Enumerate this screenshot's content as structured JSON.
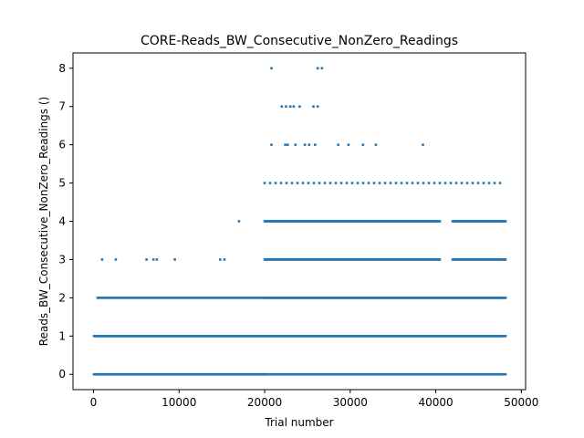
{
  "chart_data": {
    "type": "scatter",
    "title": "CORE-Reads_BW_Consecutive_NonZero_Readings",
    "xlabel": "Trial number",
    "ylabel": "Reads_BW_Consecutive_NonZero_Readings ()",
    "xlim": [
      -2400,
      50500
    ],
    "ylim": [
      -0.4,
      8.4
    ],
    "xticks": [
      0,
      10000,
      20000,
      30000,
      40000,
      50000
    ],
    "yticks": [
      0,
      1,
      2,
      3,
      4,
      5,
      6,
      7,
      8
    ],
    "marker_color": "#1f77b4",
    "grid": false,
    "series": [
      {
        "segments": [
          {
            "y": 0,
            "x": [
              0,
              20000
            ],
            "density": "dense"
          },
          {
            "y": 0,
            "x": [
              20000,
              48200
            ],
            "density": "medium"
          },
          {
            "y": 1,
            "x": [
              0,
              48200
            ],
            "density": "dense"
          },
          {
            "y": 2,
            "x": [
              500,
              20000
            ],
            "density": "medium"
          },
          {
            "y": 2,
            "x": [
              20000,
              48200
            ],
            "density": "dense"
          },
          {
            "y": 3,
            "x": [
              20000,
              40500
            ],
            "density": "dense"
          },
          {
            "y": 3,
            "x": [
              42000,
              48200
            ],
            "density": "dense"
          },
          {
            "y": 4,
            "x": [
              20000,
              40500
            ],
            "density": "dense"
          },
          {
            "y": 4,
            "x": [
              42000,
              48200
            ],
            "density": "dense"
          },
          {
            "y": 5,
            "x": [
              20000,
              48000
            ],
            "density": "sparse"
          }
        ],
        "points": [
          [
            1000,
            3
          ],
          [
            2600,
            3
          ],
          [
            6200,
            3
          ],
          [
            7000,
            3
          ],
          [
            7400,
            3
          ],
          [
            9500,
            3
          ],
          [
            14800,
            3
          ],
          [
            15300,
            3
          ],
          [
            17000,
            4
          ],
          [
            20800,
            8
          ],
          [
            26200,
            8
          ],
          [
            26700,
            8
          ],
          [
            22000,
            7
          ],
          [
            22500,
            7
          ],
          [
            23000,
            7
          ],
          [
            23400,
            7
          ],
          [
            24100,
            7
          ],
          [
            25700,
            7
          ],
          [
            26200,
            7
          ],
          [
            20800,
            6
          ],
          [
            22400,
            6
          ],
          [
            22700,
            6
          ],
          [
            23600,
            6
          ],
          [
            24700,
            6
          ],
          [
            25200,
            6
          ],
          [
            25900,
            6
          ],
          [
            28600,
            6
          ],
          [
            29800,
            6
          ],
          [
            31500,
            6
          ],
          [
            33000,
            6
          ],
          [
            38500,
            6
          ]
        ]
      }
    ]
  }
}
